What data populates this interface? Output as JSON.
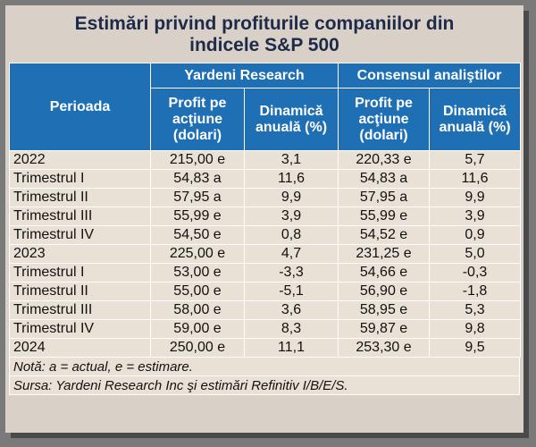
{
  "title_line1": "Estimări privind profiturile companiilor din",
  "title_line2": "indicele S&P 500",
  "header": {
    "period": "Perioada",
    "group1": "Yardeni Research",
    "group2": "Consensul analiştilor",
    "col_profit_l1": "Profit pe",
    "col_profit_l2": "acţiune",
    "col_profit_l3": "(dolari)",
    "col_dyn_l1": "Dinamică",
    "col_dyn_l2": "anuală (%)"
  },
  "rows": [
    {
      "period": "2022",
      "yr_profit": "215,00 e",
      "yr_dyn": "3,1",
      "cons_profit": "220,33 e",
      "cons_dyn": "5,7"
    },
    {
      "period": "Trimestrul I",
      "yr_profit": "54,83 a",
      "yr_dyn": "11,6",
      "cons_profit": "54,83 a",
      "cons_dyn": "11,6"
    },
    {
      "period": "Trimestrul II",
      "yr_profit": "57,95 a",
      "yr_dyn": "9,9",
      "cons_profit": "57,95 a",
      "cons_dyn": "9,9"
    },
    {
      "period": "Trimestrul III",
      "yr_profit": "55,99 e",
      "yr_dyn": "3,9",
      "cons_profit": "55,99 e",
      "cons_dyn": "3,9"
    },
    {
      "period": "Trimestrul IV",
      "yr_profit": "54,50 e",
      "yr_dyn": "0,8",
      "cons_profit": "54,52 e",
      "cons_dyn": "0,9"
    },
    {
      "period": "2023",
      "yr_profit": "225,00 e",
      "yr_dyn": "4,7",
      "cons_profit": "231,25 e",
      "cons_dyn": "5,0"
    },
    {
      "period": "Trimestrul I",
      "yr_profit": "53,00 e",
      "yr_dyn": "-3,3",
      "cons_profit": "54,66 e",
      "cons_dyn": "-0,3"
    },
    {
      "period": "Trimestrul II",
      "yr_profit": "55,00 e",
      "yr_dyn": "-5,1",
      "cons_profit": "56,90 e",
      "cons_dyn": "-1,8"
    },
    {
      "period": "Trimestrul III",
      "yr_profit": "58,00 e",
      "yr_dyn": "3,6",
      "cons_profit": "58,95 e",
      "cons_dyn": "5,3"
    },
    {
      "period": "Trimestrul IV",
      "yr_profit": "59,00 e",
      "yr_dyn": "8,3",
      "cons_profit": "59,87 e",
      "cons_dyn": "9,8"
    },
    {
      "period": "2024",
      "yr_profit": "250,00 e",
      "yr_dyn": "11,1",
      "cons_profit": "253,30 e",
      "cons_dyn": "9,5"
    }
  ],
  "note": "Notă: a = actual, e = estimare.",
  "source": "Sursa: Yardeni Research Inc şi estimări Refinitiv I/B/E/S."
}
